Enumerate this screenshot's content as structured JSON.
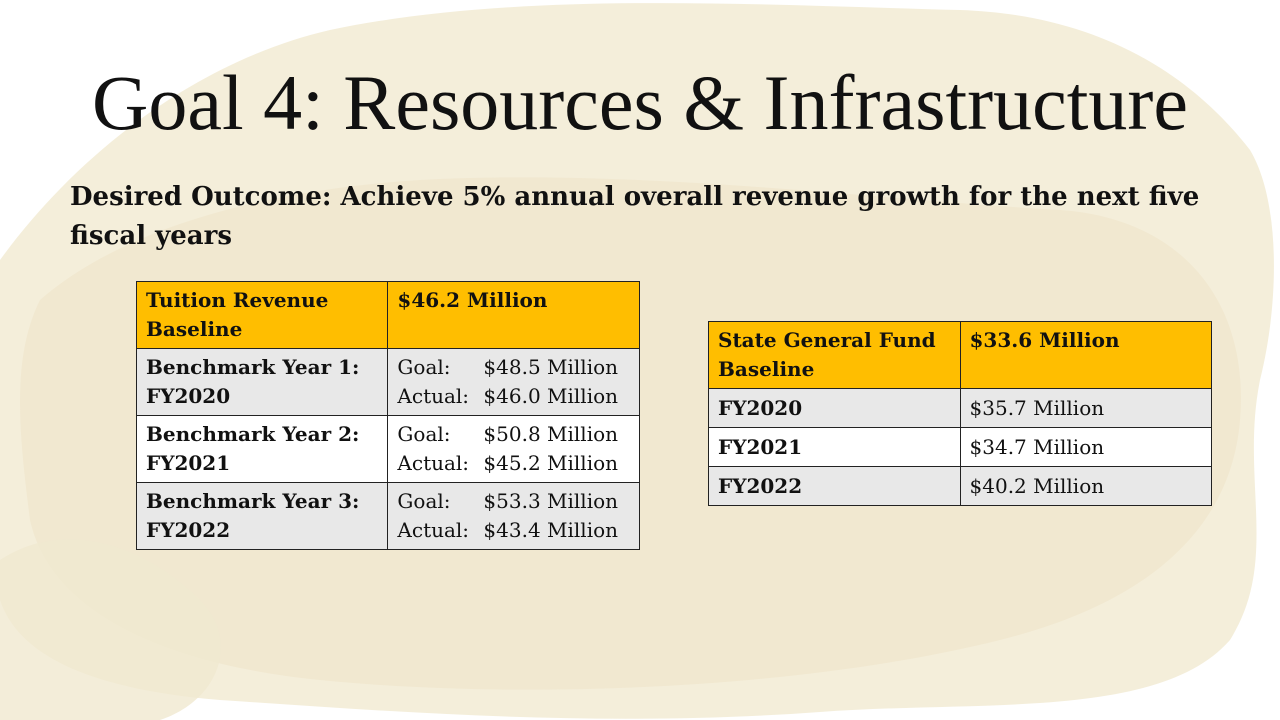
{
  "slide": {
    "title": "Goal 4:  Resources & Infrastructure",
    "outcome": "Desired Outcome:  Achieve 5% annual overall revenue growth for the next five fiscal years"
  },
  "tuition_table": {
    "header": {
      "label": "Tuition Revenue Baseline",
      "value": "$46.2 Million"
    },
    "rows": [
      {
        "label": "Benchmark Year 1: FY2020",
        "goal_label": "Goal:",
        "goal": "$48.5 Million",
        "actual_label": "Actual:",
        "actual": "$46.0 Million"
      },
      {
        "label": "Benchmark Year 2: FY2021",
        "goal_label": "Goal:",
        "goal": "$50.8 Million",
        "actual_label": "Actual:",
        "actual": "$45.2 Million"
      },
      {
        "label": "Benchmark Year 3: FY2022",
        "goal_label": "Goal:",
        "goal": "$53.3 Million",
        "actual_label": "Actual:",
        "actual": "$43.4 Million"
      }
    ]
  },
  "state_table": {
    "header": {
      "label": "State General Fund Baseline",
      "value": "$33.6 Million"
    },
    "rows": [
      {
        "label": "FY2020",
        "value": "$35.7 Million"
      },
      {
        "label": "FY2021",
        "value": "$34.7 Million"
      },
      {
        "label": "FY2022",
        "value": "$40.2 Million"
      }
    ]
  },
  "colors": {
    "header_fill": "#ffbe00",
    "band_fill": "#e8e8e8",
    "texture": "#f2ead2"
  }
}
